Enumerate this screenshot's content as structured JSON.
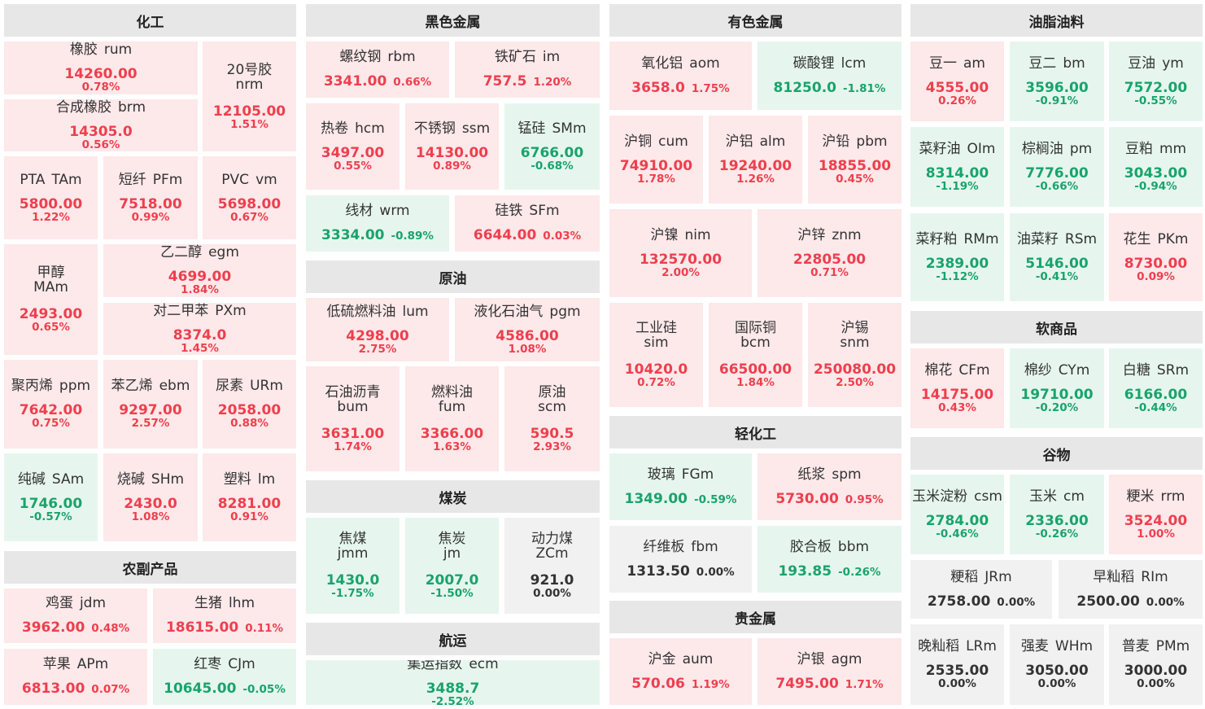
{
  "sections": [
    {
      "title": "化工"
    },
    {
      "title": "农副产品"
    },
    {
      "title": "黑色金属"
    },
    {
      "title": "原油"
    },
    {
      "title": "煤炭"
    },
    {
      "title": "航运"
    },
    {
      "title": "有色金属"
    },
    {
      "title": "轻化工"
    },
    {
      "title": "贵金属"
    },
    {
      "title": "油脂油料"
    },
    {
      "title": "软商品"
    },
    {
      "title": "谷物"
    }
  ],
  "items": [
    {
      "cn": "橡胶",
      "code": "rum",
      "price": "14260.00",
      "change": "0.78%",
      "trend": "up"
    },
    {
      "cn": "20号胶",
      "code": "nrm",
      "price": "12105.00",
      "change": "1.51%",
      "trend": "up"
    },
    {
      "cn": "合成橡胶",
      "code": "brm",
      "price": "14305.0",
      "change": "0.56%",
      "trend": "up"
    },
    {
      "cn": "PTA",
      "code": "TAm",
      "price": "5800.00",
      "change": "1.22%",
      "trend": "up"
    },
    {
      "cn": "短纤",
      "code": "PFm",
      "price": "7518.00",
      "change": "0.99%",
      "trend": "up"
    },
    {
      "cn": "PVC",
      "code": "vm",
      "price": "5698.00",
      "change": "0.67%",
      "trend": "up"
    },
    {
      "cn": "甲醇",
      "code": "MAm",
      "price": "2493.00",
      "change": "0.65%",
      "trend": "up"
    },
    {
      "cn": "乙二醇",
      "code": "egm",
      "price": "4699.00",
      "change": "1.84%",
      "trend": "up"
    },
    {
      "cn": "对二甲苯",
      "code": "PXm",
      "price": "8374.0",
      "change": "1.45%",
      "trend": "up"
    },
    {
      "cn": "聚丙烯",
      "code": "ppm",
      "price": "7642.00",
      "change": "0.75%",
      "trend": "up"
    },
    {
      "cn": "苯乙烯",
      "code": "ebm",
      "price": "9297.00",
      "change": "2.57%",
      "trend": "up"
    },
    {
      "cn": "尿素",
      "code": "URm",
      "price": "2058.00",
      "change": "0.88%",
      "trend": "up"
    },
    {
      "cn": "纯碱",
      "code": "SAm",
      "price": "1746.00",
      "change": "-0.57%",
      "trend": "down"
    },
    {
      "cn": "烧碱",
      "code": "SHm",
      "price": "2430.0",
      "change": "1.08%",
      "trend": "up"
    },
    {
      "cn": "塑料",
      "code": "lm",
      "price": "8281.00",
      "change": "0.91%",
      "trend": "up"
    },
    {
      "cn": "鸡蛋",
      "code": "jdm",
      "price": "3962.00",
      "change": "0.48%",
      "trend": "up"
    },
    {
      "cn": "生猪",
      "code": "lhm",
      "price": "18615.00",
      "change": "0.11%",
      "trend": "up"
    },
    {
      "cn": "苹果",
      "code": "APm",
      "price": "6813.00",
      "change": "0.07%",
      "trend": "up"
    },
    {
      "cn": "红枣",
      "code": "CJm",
      "price": "10645.00",
      "change": "-0.05%",
      "trend": "down"
    },
    {
      "cn": "螺纹钢",
      "code": "rbm",
      "price": "3341.00",
      "change": "0.66%",
      "trend": "up"
    },
    {
      "cn": "铁矿石",
      "code": "im",
      "price": "757.5",
      "change": "1.20%",
      "trend": "up"
    },
    {
      "cn": "热卷",
      "code": "hcm",
      "price": "3497.00",
      "change": "0.55%",
      "trend": "up"
    },
    {
      "cn": "不锈钢",
      "code": "ssm",
      "price": "14130.00",
      "change": "0.89%",
      "trend": "up"
    },
    {
      "cn": "锰硅",
      "code": "SMm",
      "price": "6766.00",
      "change": "-0.68%",
      "trend": "down"
    },
    {
      "cn": "线材",
      "code": "wrm",
      "price": "3334.00",
      "change": "-0.89%",
      "trend": "down"
    },
    {
      "cn": "硅铁",
      "code": "SFm",
      "price": "6644.00",
      "change": "0.03%",
      "trend": "up"
    },
    {
      "cn": "低硫燃料油",
      "code": "lum",
      "price": "4298.00",
      "change": "2.75%",
      "trend": "up"
    },
    {
      "cn": "液化石油气",
      "code": "pgm",
      "price": "4586.00",
      "change": "1.08%",
      "trend": "up"
    },
    {
      "cn": "石油沥青",
      "code": "bum",
      "price": "3631.00",
      "change": "1.74%",
      "trend": "up"
    },
    {
      "cn": "燃料油",
      "code": "fum",
      "price": "3366.00",
      "change": "1.63%",
      "trend": "up"
    },
    {
      "cn": "原油",
      "code": "scm",
      "price": "590.5",
      "change": "2.93%",
      "trend": "up"
    },
    {
      "cn": "焦煤",
      "code": "jmm",
      "price": "1430.0",
      "change": "-1.75%",
      "trend": "down"
    },
    {
      "cn": "焦炭",
      "code": "jm",
      "price": "2007.0",
      "change": "-1.50%",
      "trend": "down"
    },
    {
      "cn": "动力煤",
      "code": "ZCm",
      "price": "921.0",
      "change": "0.00%",
      "trend": "flat"
    },
    {
      "cn": "集运指数",
      "code": "ecm",
      "price": "3488.7",
      "change": "-2.52%",
      "trend": "down"
    },
    {
      "cn": "氧化铝",
      "code": "aom",
      "price": "3658.0",
      "change": "1.75%",
      "trend": "up"
    },
    {
      "cn": "碳酸锂",
      "code": "lcm",
      "price": "81250.0",
      "change": "-1.81%",
      "trend": "down"
    },
    {
      "cn": "沪铜",
      "code": "cum",
      "price": "74910.00",
      "change": "1.78%",
      "trend": "up"
    },
    {
      "cn": "沪铝",
      "code": "alm",
      "price": "19240.00",
      "change": "1.26%",
      "trend": "up"
    },
    {
      "cn": "沪铅",
      "code": "pbm",
      "price": "18855.00",
      "change": "0.45%",
      "trend": "up"
    },
    {
      "cn": "沪镍",
      "code": "nim",
      "price": "132570.00",
      "change": "2.00%",
      "trend": "up"
    },
    {
      "cn": "沪锌",
      "code": "znm",
      "price": "22805.00",
      "change": "0.71%",
      "trend": "up"
    },
    {
      "cn": "工业硅",
      "code": "sim",
      "price": "10420.0",
      "change": "0.72%",
      "trend": "up"
    },
    {
      "cn": "国际铜",
      "code": "bcm",
      "price": "66500.00",
      "change": "1.84%",
      "trend": "up"
    },
    {
      "cn": "沪锡",
      "code": "snm",
      "price": "250080.00",
      "change": "2.50%",
      "trend": "up"
    },
    {
      "cn": "玻璃",
      "code": "FGm",
      "price": "1349.00",
      "change": "-0.59%",
      "trend": "down"
    },
    {
      "cn": "纸浆",
      "code": "spm",
      "price": "5730.00",
      "change": "0.95%",
      "trend": "up"
    },
    {
      "cn": "纤维板",
      "code": "fbm",
      "price": "1313.50",
      "change": "0.00%",
      "trend": "flat"
    },
    {
      "cn": "胶合板",
      "code": "bbm",
      "price": "193.85",
      "change": "-0.26%",
      "trend": "down"
    },
    {
      "cn": "沪金",
      "code": "aum",
      "price": "570.06",
      "change": "1.19%",
      "trend": "up"
    },
    {
      "cn": "沪银",
      "code": "agm",
      "price": "7495.00",
      "change": "1.71%",
      "trend": "up"
    },
    {
      "cn": "豆一",
      "code": "am",
      "price": "4555.00",
      "change": "0.26%",
      "trend": "up"
    },
    {
      "cn": "豆二",
      "code": "bm",
      "price": "3596.00",
      "change": "-0.91%",
      "trend": "down"
    },
    {
      "cn": "豆油",
      "code": "ym",
      "price": "7572.00",
      "change": "-0.55%",
      "trend": "down"
    },
    {
      "cn": "菜籽油",
      "code": "OIm",
      "price": "8314.00",
      "change": "-1.19%",
      "trend": "down"
    },
    {
      "cn": "棕榈油",
      "code": "pm",
      "price": "7776.00",
      "change": "-0.66%",
      "trend": "down"
    },
    {
      "cn": "豆粕",
      "code": "mm",
      "price": "3043.00",
      "change": "-0.94%",
      "trend": "down"
    },
    {
      "cn": "菜籽粕",
      "code": "RMm",
      "price": "2389.00",
      "change": "-1.12%",
      "trend": "down"
    },
    {
      "cn": "油菜籽",
      "code": "RSm",
      "price": "5146.00",
      "change": "-0.41%",
      "trend": "down"
    },
    {
      "cn": "花生",
      "code": "PKm",
      "price": "8730.00",
      "change": "0.09%",
      "trend": "up"
    },
    {
      "cn": "棉花",
      "code": "CFm",
      "price": "14175.00",
      "change": "0.43%",
      "trend": "up"
    },
    {
      "cn": "棉纱",
      "code": "CYm",
      "price": "19710.00",
      "change": "-0.20%",
      "trend": "down"
    },
    {
      "cn": "白糖",
      "code": "SRm",
      "price": "6166.00",
      "change": "-0.44%",
      "trend": "down"
    },
    {
      "cn": "玉米淀粉",
      "code": "csm",
      "price": "2784.00",
      "change": "-0.46%",
      "trend": "down"
    },
    {
      "cn": "玉米",
      "code": "cm",
      "price": "2336.00",
      "change": "-0.26%",
      "trend": "down"
    },
    {
      "cn": "粳米",
      "code": "rrm",
      "price": "3524.00",
      "change": "1.00%",
      "trend": "up"
    },
    {
      "cn": "粳稻",
      "code": "JRm",
      "price": "2758.00",
      "change": "0.00%",
      "trend": "flat"
    },
    {
      "cn": "早籼稻",
      "code": "RIm",
      "price": "2500.00",
      "change": "0.00%",
      "trend": "flat"
    },
    {
      "cn": "晚籼稻",
      "code": "LRm",
      "price": "2535.00",
      "change": "0.00%",
      "trend": "flat"
    },
    {
      "cn": "强麦",
      "code": "WHm",
      "price": "3050.00",
      "change": "0.00%",
      "trend": "flat"
    },
    {
      "cn": "普麦",
      "code": "PMm",
      "price": "3000.00",
      "change": "0.00%",
      "trend": "flat"
    }
  ],
  "colors": {
    "up_bg": "#fde8ea",
    "down_bg": "#e6f6ef",
    "flat_bg": "#f1f1f1",
    "up_text": "#ee3f4d",
    "down_text": "#1aa36b",
    "flat_text": "#333333",
    "header_bg": "#e7e7e7"
  }
}
